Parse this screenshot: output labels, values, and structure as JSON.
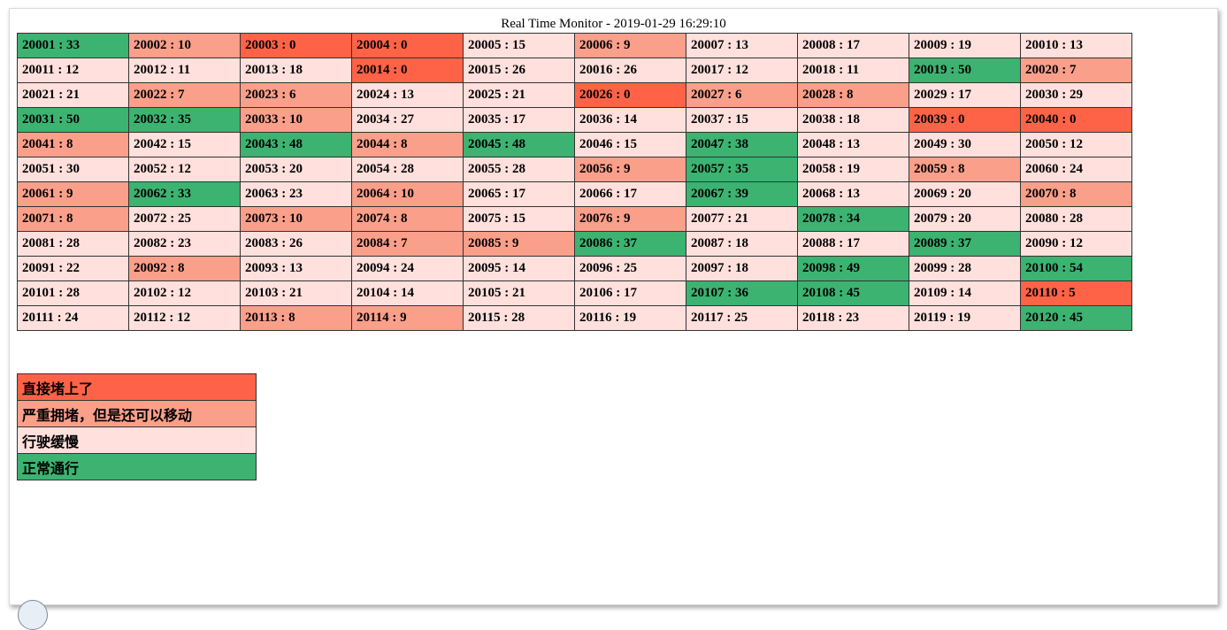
{
  "title": "Real Time Monitor - 2019-01-29 16:29:10",
  "colors": {
    "blocked": "#ff6347",
    "congested": "#fa9f8a",
    "slow": "#ffe0dc",
    "normal": "#3cb371"
  },
  "grid": [
    [
      [
        "20001 : 33",
        "normal"
      ],
      [
        "20002 : 10",
        "congested"
      ],
      [
        "20003 : 0",
        "blocked"
      ],
      [
        "20004 : 0",
        "blocked"
      ],
      [
        "20005 : 15",
        "slow"
      ],
      [
        "20006 : 9",
        "congested"
      ],
      [
        "20007 : 13",
        "slow"
      ],
      [
        "20008 : 17",
        "slow"
      ],
      [
        "20009 : 19",
        "slow"
      ],
      [
        "20010 : 13",
        "slow"
      ]
    ],
    [
      [
        "20011 : 12",
        "slow"
      ],
      [
        "20012 : 11",
        "slow"
      ],
      [
        "20013 : 18",
        "slow"
      ],
      [
        "20014 : 0",
        "blocked"
      ],
      [
        "20015 : 26",
        "slow"
      ],
      [
        "20016 : 26",
        "slow"
      ],
      [
        "20017 : 12",
        "slow"
      ],
      [
        "20018 : 11",
        "slow"
      ],
      [
        "20019 : 50",
        "normal"
      ],
      [
        "20020 : 7",
        "congested"
      ]
    ],
    [
      [
        "20021 : 21",
        "slow"
      ],
      [
        "20022 : 7",
        "congested"
      ],
      [
        "20023 : 6",
        "congested"
      ],
      [
        "20024 : 13",
        "slow"
      ],
      [
        "20025 : 21",
        "slow"
      ],
      [
        "20026 : 0",
        "blocked"
      ],
      [
        "20027 : 6",
        "congested"
      ],
      [
        "20028 : 8",
        "congested"
      ],
      [
        "20029 : 17",
        "slow"
      ],
      [
        "20030 : 29",
        "slow"
      ]
    ],
    [
      [
        "20031 : 50",
        "normal"
      ],
      [
        "20032 : 35",
        "normal"
      ],
      [
        "20033 : 10",
        "congested"
      ],
      [
        "20034 : 27",
        "slow"
      ],
      [
        "20035 : 17",
        "slow"
      ],
      [
        "20036 : 14",
        "slow"
      ],
      [
        "20037 : 15",
        "slow"
      ],
      [
        "20038 : 18",
        "slow"
      ],
      [
        "20039 : 0",
        "blocked"
      ],
      [
        "20040 : 0",
        "blocked"
      ]
    ],
    [
      [
        "20041 : 8",
        "congested"
      ],
      [
        "20042 : 15",
        "slow"
      ],
      [
        "20043 : 48",
        "normal"
      ],
      [
        "20044 : 8",
        "congested"
      ],
      [
        "20045 : 48",
        "normal"
      ],
      [
        "20046 : 15",
        "slow"
      ],
      [
        "20047 : 38",
        "normal"
      ],
      [
        "20048 : 13",
        "slow"
      ],
      [
        "20049 : 30",
        "slow"
      ],
      [
        "20050 : 12",
        "slow"
      ]
    ],
    [
      [
        "20051 : 30",
        "slow"
      ],
      [
        "20052 : 12",
        "slow"
      ],
      [
        "20053 : 20",
        "slow"
      ],
      [
        "20054 : 28",
        "slow"
      ],
      [
        "20055 : 28",
        "slow"
      ],
      [
        "20056 : 9",
        "congested"
      ],
      [
        "20057 : 35",
        "normal"
      ],
      [
        "20058 : 19",
        "slow"
      ],
      [
        "20059 : 8",
        "congested"
      ],
      [
        "20060 : 24",
        "slow"
      ]
    ],
    [
      [
        "20061 : 9",
        "congested"
      ],
      [
        "20062 : 33",
        "normal"
      ],
      [
        "20063 : 23",
        "slow"
      ],
      [
        "20064 : 10",
        "congested"
      ],
      [
        "20065 : 17",
        "slow"
      ],
      [
        "20066 : 17",
        "slow"
      ],
      [
        "20067 : 39",
        "normal"
      ],
      [
        "20068 : 13",
        "slow"
      ],
      [
        "20069 : 20",
        "slow"
      ],
      [
        "20070 : 8",
        "congested"
      ]
    ],
    [
      [
        "20071 : 8",
        "congested"
      ],
      [
        "20072 : 25",
        "slow"
      ],
      [
        "20073 : 10",
        "congested"
      ],
      [
        "20074 : 8",
        "congested"
      ],
      [
        "20075 : 15",
        "slow"
      ],
      [
        "20076 : 9",
        "congested"
      ],
      [
        "20077 : 21",
        "slow"
      ],
      [
        "20078 : 34",
        "normal"
      ],
      [
        "20079 : 20",
        "slow"
      ],
      [
        "20080 : 28",
        "slow"
      ]
    ],
    [
      [
        "20081 : 28",
        "slow"
      ],
      [
        "20082 : 23",
        "slow"
      ],
      [
        "20083 : 26",
        "slow"
      ],
      [
        "20084 : 7",
        "congested"
      ],
      [
        "20085 : 9",
        "congested"
      ],
      [
        "20086 : 37",
        "normal"
      ],
      [
        "20087 : 18",
        "slow"
      ],
      [
        "20088 : 17",
        "slow"
      ],
      [
        "20089 : 37",
        "normal"
      ],
      [
        "20090 : 12",
        "slow"
      ]
    ],
    [
      [
        "20091 : 22",
        "slow"
      ],
      [
        "20092 : 8",
        "congested"
      ],
      [
        "20093 : 13",
        "slow"
      ],
      [
        "20094 : 24",
        "slow"
      ],
      [
        "20095 : 14",
        "slow"
      ],
      [
        "20096 : 25",
        "slow"
      ],
      [
        "20097 : 18",
        "slow"
      ],
      [
        "20098 : 49",
        "normal"
      ],
      [
        "20099 : 28",
        "slow"
      ],
      [
        "20100 : 54",
        "normal"
      ]
    ],
    [
      [
        "20101 : 28",
        "slow"
      ],
      [
        "20102 : 12",
        "slow"
      ],
      [
        "20103 : 21",
        "slow"
      ],
      [
        "20104 : 14",
        "slow"
      ],
      [
        "20105 : 21",
        "slow"
      ],
      [
        "20106 : 17",
        "slow"
      ],
      [
        "20107 : 36",
        "normal"
      ],
      [
        "20108 : 45",
        "normal"
      ],
      [
        "20109 : 14",
        "slow"
      ],
      [
        "20110 : 5",
        "blocked"
      ]
    ],
    [
      [
        "20111 : 24",
        "slow"
      ],
      [
        "20112 : 12",
        "slow"
      ],
      [
        "20113 : 8",
        "congested"
      ],
      [
        "20114 : 9",
        "congested"
      ],
      [
        "20115 : 28",
        "slow"
      ],
      [
        "20116 : 19",
        "slow"
      ],
      [
        "20117 : 25",
        "slow"
      ],
      [
        "20118 : 23",
        "slow"
      ],
      [
        "20119 : 19",
        "slow"
      ],
      [
        "20120 : 45",
        "normal"
      ]
    ]
  ],
  "legend": [
    {
      "label": "直接堵上了",
      "status": "blocked"
    },
    {
      "label": "严重拥堵，但是还可以移动",
      "status": "congested"
    },
    {
      "label": "行驶缓慢",
      "status": "slow"
    },
    {
      "label": "正常通行",
      "status": "normal"
    }
  ]
}
